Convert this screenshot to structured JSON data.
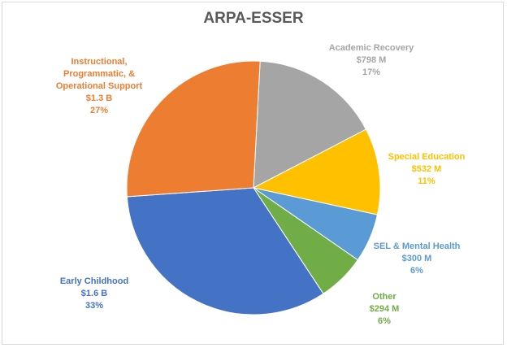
{
  "chart_data": {
    "type": "pie",
    "title": "ARPA-ESSER",
    "slices": [
      {
        "label": "Academic Recovery",
        "value_text": "$798 M",
        "percent_text": "17%",
        "value": 798,
        "color": "#A5A5A5"
      },
      {
        "label": "Special Education",
        "value_text": "$532 M",
        "percent_text": "11%",
        "value": 532,
        "color": "#FFC000"
      },
      {
        "label": "SEL & Mental Health",
        "value_text": "$300 M",
        "percent_text": "6%",
        "value": 300,
        "color": "#5B9BD5"
      },
      {
        "label": "Other",
        "value_text": "$294 M",
        "percent_text": "6%",
        "value": 294,
        "color": "#70AD47"
      },
      {
        "label": "Early Childhood",
        "value_text": "$1.6 B",
        "percent_text": "33%",
        "value": 1600,
        "color": "#4472C4"
      },
      {
        "label": "Instructional, Programmatic, & Operational Support",
        "label_lines": [
          "Instructional,",
          "Programmatic, &",
          "Operational Support"
        ],
        "value_text": "$1.3 B",
        "percent_text": "27%",
        "value": 1300,
        "color": "#ED7D31"
      }
    ],
    "start_angle_deg": 3,
    "direction": "clockwise",
    "legend": "none"
  }
}
